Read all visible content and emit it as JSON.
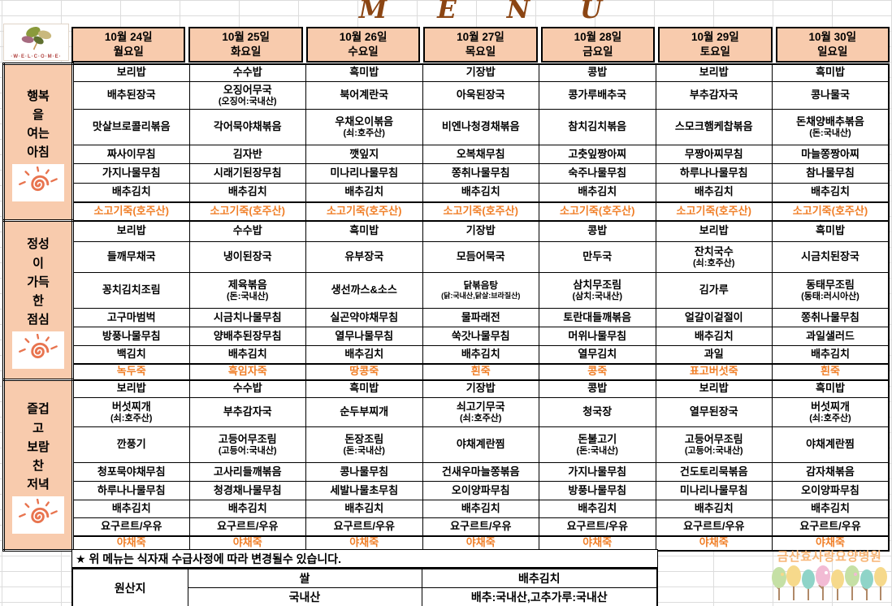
{
  "title": "MENU",
  "logo": {
    "welcome_text": "·W·E·L·C·O·M·E·"
  },
  "colors": {
    "header_fill": "#F8CBAD",
    "porridge_text": "#F07E26",
    "title_brown": "#8B4513",
    "hospital_text": "#F7B576"
  },
  "sections": [
    {
      "id": "breakfast",
      "label": "행복\n을\n여는\n아침"
    },
    {
      "id": "lunch",
      "label": "정성\n이\n가득\n한\n점심"
    },
    {
      "id": "dinner",
      "label": "즐겁\n고\n보람\n찬\n저녁"
    }
  ],
  "days": [
    {
      "date": "10월 24일",
      "weekday": "월요일",
      "breakfast": [
        "보리밥",
        "배추된장국",
        "맛살브로콜리볶음",
        "짜사이무침",
        "가지나물무침",
        "배추김치",
        "소고기죽(호주산)"
      ],
      "lunch": [
        "보리밥",
        "들깨무채국",
        "꽁치김치조림",
        "고구마범벅",
        "방풍나물무침",
        "백김치",
        "녹두죽"
      ],
      "dinner": [
        "보리밥",
        "버섯찌개\n(쇠:호주산)",
        "깐풍기",
        "청포묵야채무침",
        "하루나나물무침",
        "배추김치",
        "요구르트/우유",
        "야채죽"
      ]
    },
    {
      "date": "10월 25일",
      "weekday": "화요일",
      "breakfast": [
        "수수밥",
        "오징어무국\n(오징어:국내산)",
        "각어묵야채볶음",
        "김자반",
        "시래기된장무침",
        "배추김치",
        "소고기죽(호주산)"
      ],
      "lunch": [
        "수수밥",
        "냉이된장국",
        "제육볶음\n(돈:국내산)",
        "시금치나물무침",
        "양배추된장무침",
        "배추김치",
        "흑임자죽"
      ],
      "dinner": [
        "수수밥",
        "부추감자국",
        "고등어무조림\n(고등어:국내산)",
        "고사리들깨볶음",
        "청경채나물무침",
        "배추김치",
        "요구르트/우유",
        "야채죽"
      ]
    },
    {
      "date": "10월 26일",
      "weekday": "수요일",
      "breakfast": [
        "흑미밥",
        "북어계란국",
        "우채오이볶음\n(쇠:호주산)",
        "깻잎지",
        "미나리나물무침",
        "배추김치",
        "소고기죽(호주산)"
      ],
      "lunch": [
        "흑미밥",
        "유부장국",
        "생선까스&소스",
        "실곤약야채무침",
        "열무나물무침",
        "배추김치",
        "땅콩죽"
      ],
      "dinner": [
        "흑미밥",
        "순두부찌개",
        "돈장조림\n(돈:국내산)",
        "콩나물무침",
        "세발나물초무침",
        "배추김치",
        "요구르트/우유",
        "야채죽"
      ]
    },
    {
      "date": "10월 27일",
      "weekday": "목요일",
      "breakfast": [
        "기장밥",
        "아욱된장국",
        "비엔나청경채볶음",
        "오복채무침",
        "쫑취나물무침",
        "배추김치",
        "소고기죽(호주산)"
      ],
      "lunch": [
        "기장밥",
        "모듬어묵국",
        "닭볶음탕\n(닭:국내산,닭살:브라질산)",
        "물파래전",
        "쑥갓나물무침",
        "배추김치",
        "흰죽"
      ],
      "dinner": [
        "기장밥",
        "쇠고기무국\n(쇠:호주산)",
        "야채계란찜",
        "건새우마늘쫑볶음",
        "오이양파무침",
        "배추김치",
        "요구르트/우유",
        "야채죽"
      ]
    },
    {
      "date": "10월 28일",
      "weekday": "금요일",
      "breakfast": [
        "콩밥",
        "콩가루배추국",
        "참치김치볶음",
        "고춧잎짱아찌",
        "숙주나물무침",
        "배추김치",
        "소고기죽(호주산)"
      ],
      "lunch": [
        "콩밥",
        "만두국",
        "삼치무조림\n(삼치:국내산)",
        "토란대들깨볶음",
        "머위나물무침",
        "열무김치",
        "콩죽"
      ],
      "dinner": [
        "콩밥",
        "청국장",
        "돈불고기\n(돈:국내산)",
        "가지나물무침",
        "방풍나물무침",
        "배추김치",
        "요구르트/우유",
        "야채죽"
      ]
    },
    {
      "date": "10월 29일",
      "weekday": "토요일",
      "breakfast": [
        "보리밥",
        "부추감자국",
        "스모크햄케찹볶음",
        "무짱아찌무침",
        "하루나나물무침",
        "배추김치",
        "소고기죽(호주산)"
      ],
      "lunch": [
        "보리밥",
        "잔치국수\n(쇠:호주산)",
        "김가루",
        "얼갈이겉절이",
        "배추김치",
        "과일",
        "표고버섯죽"
      ],
      "dinner": [
        "보리밥",
        "열무된장국",
        "고등어무조림\n(고등어:국내산)",
        "건도토리묵볶음",
        "미나리나물무침",
        "배추김치",
        "요구르트/우유",
        "야채죽"
      ]
    },
    {
      "date": "10월 30일",
      "weekday": "일요일",
      "breakfast": [
        "흑미밥",
        "콩나물국",
        "돈채양배추볶음\n(돈:국내산)",
        "마늘쫑짱아찌",
        "참나물무침",
        "배추김치",
        "소고기죽(호주산)"
      ],
      "lunch": [
        "흑미밥",
        "시금치된장국",
        "동태무조림\n(동태:러시아산)",
        "쫑취나물무침",
        "과일샐러드",
        "배추김치",
        "흰죽"
      ],
      "dinner": [
        "흑미밥",
        "버섯찌개\n(쇠:호주산)",
        "야채계란찜",
        "감자채볶음",
        "오이양파무침",
        "배추김치",
        "요구르트/우유",
        "야채죽"
      ]
    }
  ],
  "footer": {
    "note": "★ 위 메뉴는 식자재 수급사정에 따라 변경될수 있습니다.",
    "origin": {
      "label": "원산지",
      "rice_title": "쌀",
      "rice_value": "국내산",
      "kimchi_title": "배추김치",
      "kimchi_value": "배추:국내산,고추가루:국내산"
    },
    "hospital": "금산효사랑요양병원"
  }
}
